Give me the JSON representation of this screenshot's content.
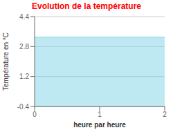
{
  "chart_data": {
    "type": "area",
    "title": "Evolution de la température",
    "xlabel": "heure par heure",
    "ylabel": "Température en °C",
    "x": [
      0,
      2
    ],
    "values": [
      3.3,
      3.3
    ],
    "color": "#7dd4e8",
    "xlim": [
      0,
      2
    ],
    "xticks": [
      0,
      1,
      2
    ],
    "ylim": [
      -0.4,
      4.4
    ],
    "yticks": [
      -0.4,
      1.2,
      2.8,
      4.4
    ],
    "grid": true
  }
}
